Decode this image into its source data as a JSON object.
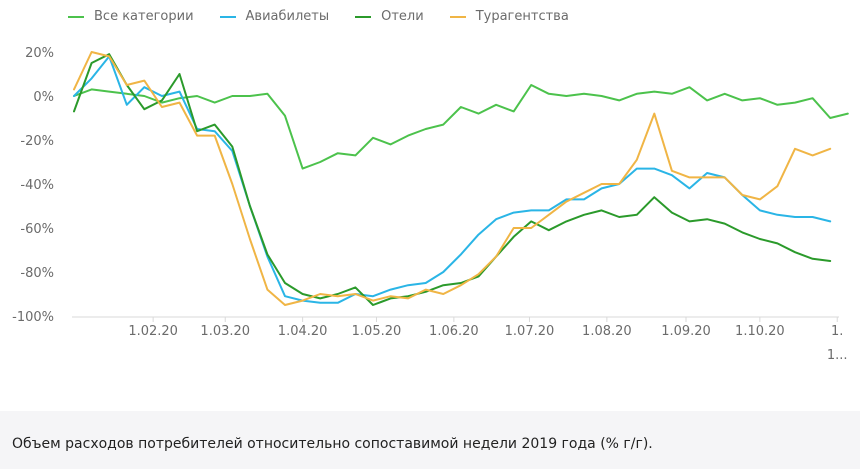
{
  "chart_data": {
    "type": "line",
    "title": "",
    "xlabel": "",
    "ylabel": "",
    "ylim": [
      -100,
      20
    ],
    "y_ticks": [
      20,
      0,
      -20,
      -40,
      -60,
      -80,
      -100
    ],
    "y_tick_suffix": "%",
    "x_ticks": [
      {
        "label": "1.02.20",
        "x": 4.5
      },
      {
        "label": "1.03.20",
        "x": 8.6
      },
      {
        "label": "1.04.20",
        "x": 13.0
      },
      {
        "label": "1.05.20",
        "x": 17.2
      },
      {
        "label": "1.06.20",
        "x": 21.6
      },
      {
        "label": "1.07.20",
        "x": 25.9
      },
      {
        "label": "1.08.20",
        "x": 30.3
      },
      {
        "label": "1.09.20",
        "x": 34.8
      },
      {
        "label": "1.10.20",
        "x": 39.0
      },
      {
        "label": "1.",
        "sublabel": "1...",
        "x": 43.4
      }
    ],
    "xlim": [
      0,
      43.5
    ],
    "grid": false,
    "legend_position": "top-left",
    "series": [
      {
        "name": "Все категории",
        "color": "#4cc24c",
        "values": [
          0,
          3,
          2,
          1,
          0,
          -3,
          -1,
          0,
          -3,
          0,
          0,
          1,
          -9,
          -33,
          -30,
          -26,
          -27,
          -19,
          -22,
          -18,
          -15,
          -13,
          -5,
          -8,
          -4,
          -7,
          5,
          1,
          0,
          1,
          0,
          -2,
          1,
          2,
          1,
          4,
          -2,
          1,
          -2,
          -1,
          -4,
          -3,
          -1,
          -10,
          -8
        ]
      },
      {
        "name": "Авиабилеты",
        "color": "#2ab5e6",
        "values": [
          0,
          8,
          18,
          -4,
          4,
          0,
          2,
          -15,
          -16,
          -25,
          -50,
          -73,
          -91,
          -93,
          -94,
          -94,
          -90,
          -91,
          -88,
          -86,
          -85,
          -80,
          -72,
          -63,
          -56,
          -53,
          -52,
          -52,
          -47,
          -47,
          -42,
          -40,
          -33,
          -33,
          -36,
          -42,
          -35,
          -37,
          -45,
          -52,
          -54,
          -55,
          -55,
          -57
        ]
      },
      {
        "name": "Отели",
        "color": "#2b9a2b",
        "values": [
          -7,
          15,
          19,
          5,
          -6,
          -2,
          10,
          -16,
          -13,
          -23,
          -50,
          -72,
          -85,
          -90,
          -92,
          -90,
          -87,
          -95,
          -92,
          -91,
          -89,
          -86,
          -85,
          -82,
          -73,
          -64,
          -57,
          -61,
          -57,
          -54,
          -52,
          -55,
          -54,
          -46,
          -53,
          -57,
          -56,
          -58,
          -62,
          -65,
          -67,
          -71,
          -74,
          -75
        ]
      },
      {
        "name": "Турагентства",
        "color": "#f0b545",
        "values": [
          3,
          20,
          18,
          5,
          7,
          -5,
          -3,
          -18,
          -18,
          -40,
          -65,
          -88,
          -95,
          -93,
          -90,
          -91,
          -90,
          -93,
          -91,
          -92,
          -88,
          -90,
          -86,
          -81,
          -73,
          -60,
          -60,
          -54,
          -48,
          -44,
          -40,
          -40,
          -29,
          -8,
          -34,
          -37,
          -37,
          -37,
          -45,
          -47,
          -41,
          -24,
          -27,
          -24
        ]
      }
    ]
  },
  "caption": "Объем расходов потребителей относительно сопоставимой недели 2019 года (% г/г)."
}
